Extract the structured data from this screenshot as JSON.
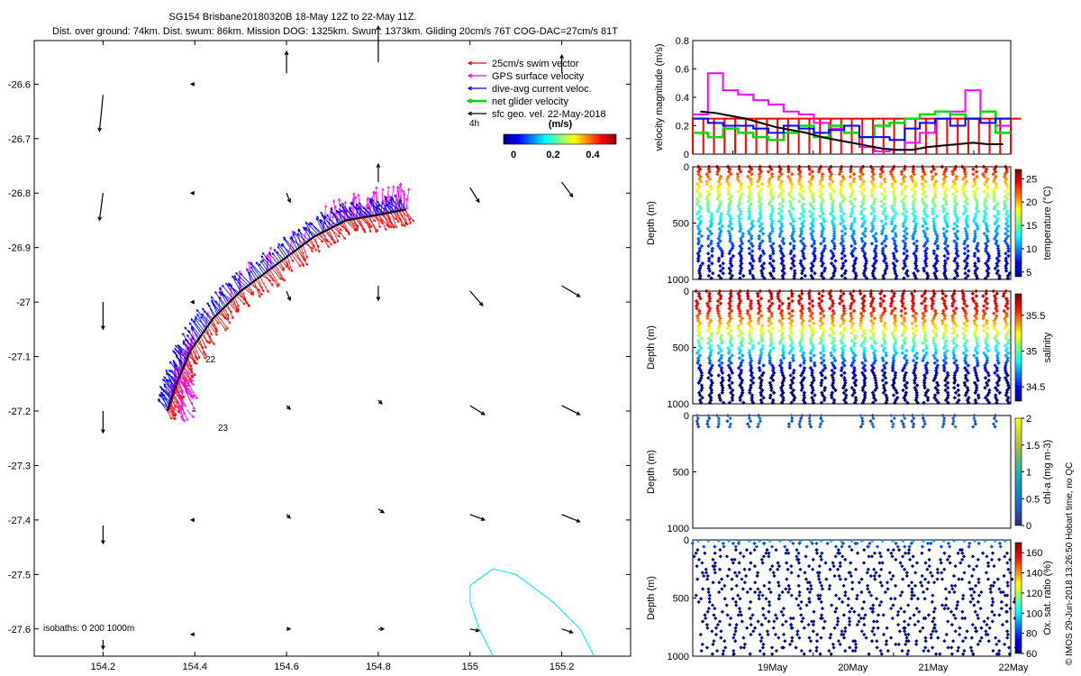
{
  "header": {
    "title_line1": "SG154 Brisbane20180320B 18-May 12Z to 22-May 11Z.",
    "title_line2": "Dist. over ground: 74km. Dist. swum: 86km. Mission DOG: 1325km. Swum: 1373km. Gliding 20cm/s 76T COG-DAC=27cm/s 81T"
  },
  "map": {
    "legend": [
      {
        "label": "25cm/s swim vector",
        "color": "#ff0000"
      },
      {
        "label": "GPS surface velocity",
        "color": "#ff00ff"
      },
      {
        "label": "dive-avg current veloc.",
        "color": "#0000ff"
      },
      {
        "label": "net glider velocity",
        "color": "#00dd00"
      },
      {
        "label": "sfc geo. vel. 22-May-2018",
        "color": "#000000"
      }
    ],
    "duration_label": "4h",
    "colorbar_unit": "(m/s)",
    "colorbar_ticks": [
      "0",
      "0.2",
      "0.4"
    ],
    "marker_22": "22",
    "marker_23": "23",
    "isobaths_label": "isobaths: 0   200  1000m",
    "colors": {
      "track": "#000000",
      "isobath": "#00e5ff"
    }
  },
  "chart_data": [
    {
      "type": "vector-map",
      "xlabel": "",
      "ylabel": "",
      "xlim": [
        154.05,
        155.35
      ],
      "ylim": [
        -27.65,
        -26.52
      ],
      "x_ticks": [
        "154.2",
        "154.4",
        "154.6",
        "154.8",
        "155",
        "155.2"
      ],
      "y_ticks": [
        "-26.6",
        "-26.7",
        "-26.8",
        "-26.9",
        "-27",
        "-27.1",
        "-27.2",
        "-27.3",
        "-27.4",
        "-27.5",
        "-27.6"
      ],
      "glider_track": [
        [
          154.34,
          -27.2
        ],
        [
          154.36,
          -27.15
        ],
        [
          154.39,
          -27.09
        ],
        [
          154.44,
          -27.03
        ],
        [
          154.5,
          -26.98
        ],
        [
          154.58,
          -26.93
        ],
        [
          154.66,
          -26.88
        ],
        [
          154.73,
          -26.85
        ],
        [
          154.8,
          -26.84
        ],
        [
          154.86,
          -26.83
        ]
      ],
      "geo_vectors": [
        {
          "x": 154.2,
          "y": -26.62,
          "u": -0.02,
          "v": -0.2
        },
        {
          "x": 154.4,
          "y": -26.6,
          "u": -0.02,
          "v": 0.0
        },
        {
          "x": 154.6,
          "y": -26.58,
          "u": 0.0,
          "v": 0.12
        },
        {
          "x": 154.8,
          "y": -26.56,
          "u": 0.0,
          "v": 0.2
        },
        {
          "x": 155.2,
          "y": -26.58,
          "u": 0.0,
          "v": 0.1
        },
        {
          "x": 154.2,
          "y": -26.8,
          "u": -0.02,
          "v": -0.15
        },
        {
          "x": 154.4,
          "y": -26.8,
          "u": -0.02,
          "v": 0.0
        },
        {
          "x": 154.6,
          "y": -26.8,
          "u": 0.02,
          "v": -0.05
        },
        {
          "x": 154.8,
          "y": -26.78,
          "u": 0.0,
          "v": 0.1
        },
        {
          "x": 155.0,
          "y": -26.79,
          "u": 0.05,
          "v": -0.08
        },
        {
          "x": 155.2,
          "y": -26.78,
          "u": 0.06,
          "v": -0.08
        },
        {
          "x": 154.2,
          "y": -27.0,
          "u": 0.0,
          "v": -0.15
        },
        {
          "x": 154.4,
          "y": -27.0,
          "u": -0.02,
          "v": 0.0
        },
        {
          "x": 154.6,
          "y": -26.98,
          "u": 0.02,
          "v": -0.05
        },
        {
          "x": 154.8,
          "y": -26.97,
          "u": 0.0,
          "v": -0.08
        },
        {
          "x": 155.0,
          "y": -26.98,
          "u": 0.07,
          "v": -0.08
        },
        {
          "x": 155.2,
          "y": -26.97,
          "u": 0.1,
          "v": -0.06
        },
        {
          "x": 154.2,
          "y": -27.2,
          "u": 0.0,
          "v": -0.12
        },
        {
          "x": 154.4,
          "y": -27.2,
          "u": 0.0,
          "v": 0.0
        },
        {
          "x": 154.6,
          "y": -27.19,
          "u": 0.02,
          "v": -0.02
        },
        {
          "x": 154.8,
          "y": -27.18,
          "u": 0.02,
          "v": -0.02
        },
        {
          "x": 155.0,
          "y": -27.19,
          "u": 0.08,
          "v": -0.05
        },
        {
          "x": 155.2,
          "y": -27.19,
          "u": 0.1,
          "v": -0.05
        },
        {
          "x": 154.2,
          "y": -27.41,
          "u": 0.0,
          "v": -0.1
        },
        {
          "x": 154.4,
          "y": -27.4,
          "u": -0.02,
          "v": 0.0
        },
        {
          "x": 154.6,
          "y": -27.39,
          "u": 0.02,
          "v": -0.02
        },
        {
          "x": 154.8,
          "y": -27.38,
          "u": 0.03,
          "v": -0.02
        },
        {
          "x": 155.0,
          "y": -27.39,
          "u": 0.08,
          "v": -0.03
        },
        {
          "x": 155.2,
          "y": -27.39,
          "u": 0.1,
          "v": -0.04
        },
        {
          "x": 154.2,
          "y": -27.62,
          "u": 0.0,
          "v": -0.05
        },
        {
          "x": 154.4,
          "y": -27.61,
          "u": -0.02,
          "v": 0.0
        },
        {
          "x": 154.6,
          "y": -27.6,
          "u": 0.02,
          "v": 0.0
        },
        {
          "x": 154.8,
          "y": -27.6,
          "u": 0.03,
          "v": 0.0
        },
        {
          "x": 155.0,
          "y": -27.6,
          "u": 0.05,
          "v": -0.01
        },
        {
          "x": 155.2,
          "y": -27.6,
          "u": 0.06,
          "v": -0.02
        }
      ]
    },
    {
      "type": "line",
      "ylabel": "velocity magnitude (m/s)",
      "ylim": [
        0,
        0.8
      ],
      "y_ticks": [
        "0",
        "0.2",
        "0.4",
        "0.6",
        "0.8"
      ],
      "x_range_days": [
        18.5,
        22.46
      ],
      "series": [
        {
          "color": "#ff00ff",
          "values": [
            0.28,
            0.57,
            0.45,
            0.42,
            0.38,
            0.35,
            0.3,
            0.28,
            0.22,
            0.18,
            0.15,
            0.05,
            0.02,
            0.03,
            0.08,
            0.15,
            0.25,
            0.3,
            0.45,
            0.3,
            0.2
          ]
        },
        {
          "color": "#00dd00",
          "values": [
            0.15,
            0.12,
            0.18,
            0.15,
            0.12,
            0.1,
            0.15,
            0.2,
            0.12,
            0.2,
            0.15,
            0.12,
            0.2,
            0.22,
            0.25,
            0.28,
            0.3,
            0.28,
            0.25,
            0.3,
            0.15
          ]
        },
        {
          "color": "#0000ff",
          "values": [
            0.25,
            0.22,
            0.2,
            0.2,
            0.18,
            0.15,
            0.2,
            0.18,
            0.15,
            0.17,
            0.2,
            0.12,
            0.12,
            0.1,
            0.18,
            0.22,
            0.25,
            0.2,
            0.25,
            0.22,
            0.25
          ]
        },
        {
          "color": "#000000",
          "values": [
            0.3,
            0.29,
            0.27,
            0.25,
            0.22,
            0.19,
            0.17,
            0.15,
            0.12,
            0.1,
            0.08,
            0.06,
            0.04,
            0.03,
            0.03,
            0.05,
            0.06,
            0.07,
            0.08,
            0.07,
            0.07
          ]
        }
      ],
      "bars": {
        "color": "#ff0000",
        "value": 0.25,
        "count": 30
      }
    },
    {
      "type": "scatter",
      "ylabel": "Depth (m)",
      "colorbar_label": "temperature (°C)",
      "colorbar_ticks": [
        "5",
        "10",
        "15",
        "20",
        "25"
      ],
      "clim": [
        4,
        27
      ],
      "ylim": [
        1000,
        0
      ],
      "y_ticks": [
        "0",
        "500",
        "1000"
      ],
      "profiles": 31,
      "max_depth": 1000
    },
    {
      "type": "scatter",
      "ylabel": "Depth (m)",
      "colorbar_label": "salinity",
      "colorbar_ticks": [
        "34.5",
        "35",
        "35.5"
      ],
      "clim": [
        34.3,
        35.8
      ],
      "ylim": [
        1000,
        0
      ],
      "y_ticks": [
        "0",
        "500",
        "1000"
      ],
      "profiles": 31,
      "max_depth": 1000
    },
    {
      "type": "scatter",
      "ylabel": "Depth (m)",
      "colorbar_label": "chl-a (mg m-3)",
      "colorbar_ticks": [
        "0",
        "0.5",
        "1",
        "1.5",
        "2"
      ],
      "clim": [
        0,
        2
      ],
      "ylim": [
        1000,
        0
      ],
      "y_ticks": [
        "0",
        "500",
        "1000"
      ],
      "max_depth": 150
    },
    {
      "type": "scatter",
      "ylabel": "Depth (m)",
      "colorbar_label": "Ox. sat. ratio (%)",
      "colorbar_ticks": [
        "60",
        "80",
        "100",
        "120",
        "140",
        "160"
      ],
      "clim": [
        60,
        170
      ],
      "ylim": [
        1000,
        0
      ],
      "y_ticks": [
        "0",
        "500",
        "1000"
      ],
      "x_ticks": [
        "19May",
        "20May",
        "21May",
        "22May"
      ],
      "x_tick_days": [
        19,
        20,
        21,
        22
      ],
      "max_depth": 1000
    }
  ],
  "footer": {
    "credit": "© IMOS 29-Jun-2018 13:26:50 Hobart time, no QC"
  }
}
